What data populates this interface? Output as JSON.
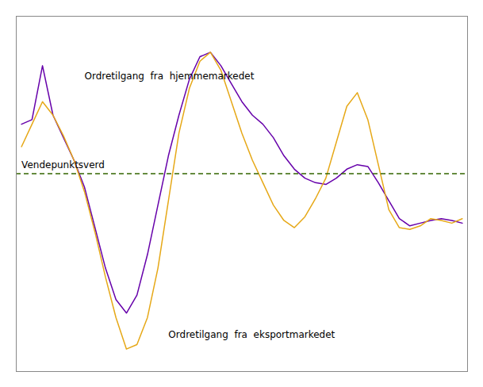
{
  "chart_data": {
    "type": "line",
    "x": [
      0,
      1,
      2,
      3,
      4,
      5,
      6,
      7,
      8,
      9,
      10,
      11,
      12,
      13,
      14,
      15,
      16,
      17,
      18,
      19,
      20,
      21,
      22,
      23,
      24,
      25,
      26,
      27,
      28,
      29,
      30,
      31,
      32,
      33,
      34,
      35,
      36,
      37,
      38,
      39,
      40,
      41,
      42
    ],
    "series": [
      {
        "color": "#6600aa",
        "values": [
          0.55,
          0.6,
          1.2,
          0.65,
          0.4,
          0.15,
          -0.15,
          -0.6,
          -1.05,
          -1.4,
          -1.55,
          -1.35,
          -0.9,
          -0.35,
          0.2,
          0.65,
          1.05,
          1.3,
          1.35,
          1.2,
          1.0,
          0.8,
          0.65,
          0.55,
          0.4,
          0.2,
          0.05,
          -0.05,
          -0.1,
          -0.12,
          -0.05,
          0.05,
          0.1,
          0.08,
          -0.1,
          -0.3,
          -0.5,
          -0.58,
          -0.55,
          -0.52,
          -0.5,
          -0.52,
          -0.55
        ]
      },
      {
        "color": "#e6a817",
        "values": [
          0.3,
          0.55,
          0.8,
          0.65,
          0.42,
          0.15,
          -0.2,
          -0.65,
          -1.15,
          -1.6,
          -1.95,
          -1.9,
          -1.6,
          -1.05,
          -0.3,
          0.45,
          0.95,
          1.25,
          1.35,
          1.15,
          0.8,
          0.45,
          0.15,
          -0.1,
          -0.35,
          -0.52,
          -0.6,
          -0.48,
          -0.28,
          -0.05,
          0.35,
          0.75,
          0.9,
          0.6,
          0.1,
          -0.4,
          -0.6,
          -0.62,
          -0.58,
          -0.5,
          -0.52,
          -0.55,
          -0.5
        ]
      }
    ],
    "hlines": [
      {
        "y": 0.0,
        "color": "#336600",
        "line_style": "dashed"
      }
    ],
    "annotations": [
      {
        "text": "Ordretilgang  fra  hjemmemarkedet",
        "x": 6,
        "y": 1.05
      },
      {
        "text": "Ordretilgang  fra  eksportmarkedet",
        "x": 14,
        "y": -1.75
      },
      {
        "text": "Vendepunktsverd",
        "x": 0,
        "y": 0.06
      }
    ],
    "xlim": [
      -0.5,
      42.5
    ],
    "ylim": [
      -2.2,
      1.75
    ],
    "tick_labels": false,
    "grid": false
  }
}
